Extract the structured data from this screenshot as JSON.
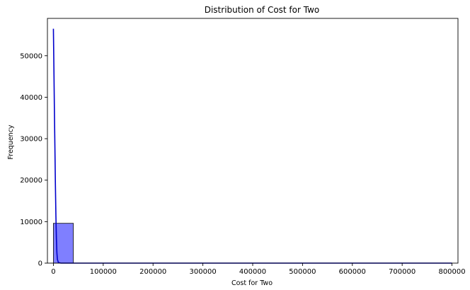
{
  "chart_data": {
    "type": "bar",
    "title": "Distribution of Cost for Two",
    "xlabel": "Cost for Two",
    "ylabel": "Frequency",
    "xlim": [
      -12000,
      812000
    ],
    "ylim": [
      0,
      59000
    ],
    "x_ticks": [
      0,
      100000,
      200000,
      300000,
      400000,
      500000,
      600000,
      700000,
      800000
    ],
    "y_ticks": [
      0,
      10000,
      20000,
      30000,
      40000,
      50000
    ],
    "bin_edges": [
      0,
      40000,
      80000,
      120000,
      160000,
      200000,
      240000,
      280000,
      320000,
      360000,
      400000,
      440000,
      480000,
      520000,
      560000,
      600000,
      640000,
      680000,
      720000,
      760000,
      800000
    ],
    "values": [
      9600,
      0,
      0,
      0,
      0,
      0,
      0,
      0,
      0,
      0,
      0,
      0,
      0,
      0,
      0,
      0,
      0,
      0,
      0,
      0
    ],
    "kde": {
      "x": [
        0,
        1000,
        2000,
        3000,
        4000,
        5000,
        6000,
        7000,
        8000,
        10000,
        15000,
        30000,
        100000,
        400000,
        800000
      ],
      "y": [
        56500,
        47000,
        37000,
        28000,
        19000,
        11500,
        6000,
        2500,
        900,
        150,
        0,
        0,
        0,
        0,
        0
      ]
    },
    "grid": false,
    "colors": {
      "bar_fill": "#7f7fff",
      "bar_edge": "#1a1a1a",
      "kde_line": "#0000cc"
    }
  }
}
